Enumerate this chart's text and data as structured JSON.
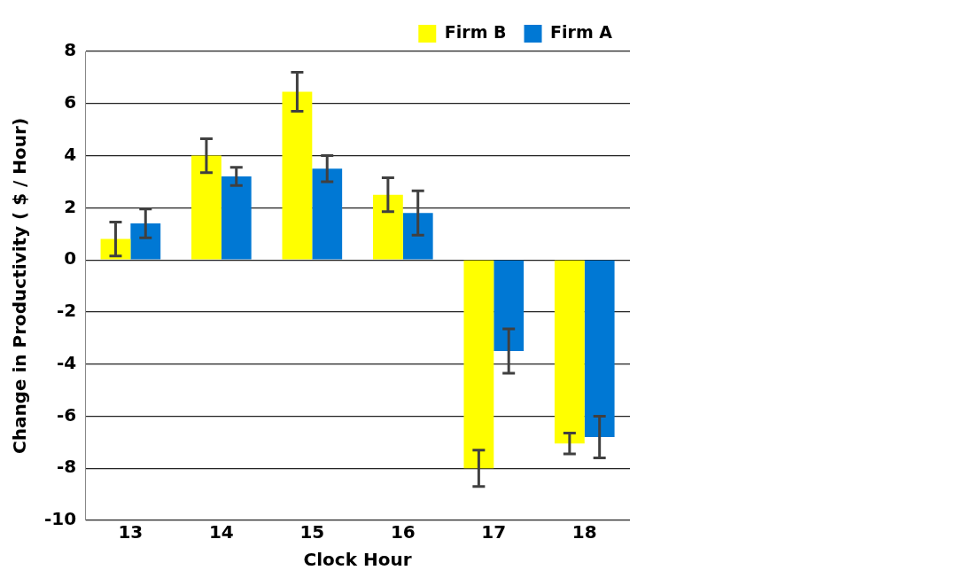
{
  "chart_data": {
    "type": "bar",
    "xlabel": "Clock Hour",
    "ylabel": "Change in Productivity ( $ / Hour)",
    "categories": [
      "13",
      "14",
      "15",
      "16",
      "17",
      "18"
    ],
    "series": [
      {
        "name": "Firm B",
        "color": "#ffff00",
        "values": [
          0.8,
          4.0,
          6.45,
          2.5,
          -8.0,
          -7.05
        ],
        "errors": [
          0.65,
          0.65,
          0.75,
          0.65,
          0.7,
          0.4
        ]
      },
      {
        "name": "Firm A",
        "color": "#0078d4",
        "values": [
          1.4,
          3.2,
          3.5,
          1.8,
          -3.5,
          -6.8
        ],
        "errors": [
          0.55,
          0.35,
          0.5,
          0.85,
          0.85,
          0.8
        ]
      }
    ],
    "ylim": [
      -10,
      8
    ],
    "yticks": [
      -10,
      -8,
      -6,
      -4,
      -2,
      0,
      2,
      4,
      6,
      8
    ],
    "grid": "y",
    "legend": "top right"
  }
}
